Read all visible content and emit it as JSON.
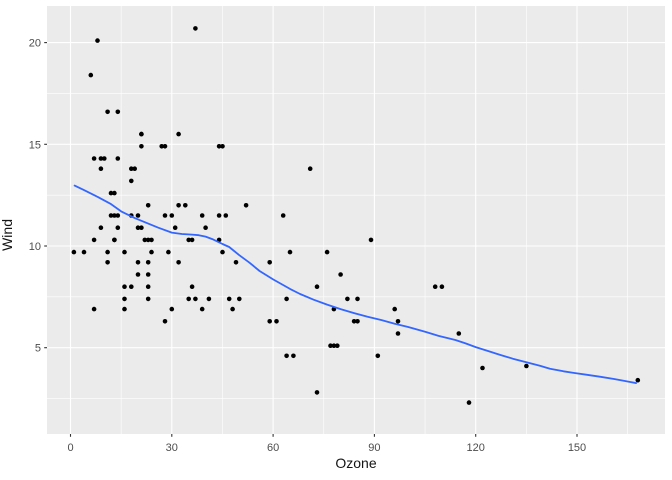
{
  "chart_data": {
    "type": "scatter",
    "title": "",
    "xlabel": "Ozone",
    "ylabel": "Wind",
    "x_ticks": [
      0,
      30,
      60,
      90,
      120,
      150
    ],
    "x_minor_ticks": [
      15,
      45,
      75,
      105,
      135,
      165
    ],
    "y_ticks": [
      5,
      10,
      15,
      20
    ],
    "y_minor_ticks": [
      2.5,
      7.5,
      12.5,
      17.5
    ],
    "xlim": [
      -7.0,
      176.1
    ],
    "ylim": [
      0.8,
      21.8
    ],
    "grid": true,
    "legend_position": "none",
    "series": [
      {
        "name": "points",
        "type": "scatter",
        "points": [
          [
            41,
            7.4
          ],
          [
            36,
            8.0
          ],
          [
            12,
            12.6
          ],
          [
            18,
            11.5
          ],
          [
            28,
            14.9
          ],
          [
            23,
            8.6
          ],
          [
            19,
            13.8
          ],
          [
            8,
            20.1
          ],
          [
            7,
            6.9
          ],
          [
            16,
            9.7
          ],
          [
            11,
            9.2
          ],
          [
            14,
            10.9
          ],
          [
            18,
            13.2
          ],
          [
            14,
            11.5
          ],
          [
            34,
            12.0
          ],
          [
            6,
            18.4
          ],
          [
            30,
            11.5
          ],
          [
            11,
            9.7
          ],
          [
            1,
            9.7
          ],
          [
            11,
            16.6
          ],
          [
            4,
            9.7
          ],
          [
            32,
            12.0
          ],
          [
            23,
            12.0
          ],
          [
            45,
            14.9
          ],
          [
            115,
            5.7
          ],
          [
            37,
            7.4
          ],
          [
            29,
            9.7
          ],
          [
            71,
            13.8
          ],
          [
            39,
            11.5
          ],
          [
            23,
            8.0
          ],
          [
            21,
            14.9
          ],
          [
            37,
            20.7
          ],
          [
            20,
            9.2
          ],
          [
            12,
            11.5
          ],
          [
            13,
            10.3
          ],
          [
            135,
            4.1
          ],
          [
            49,
            9.2
          ],
          [
            32,
            9.2
          ],
          [
            64,
            4.6
          ],
          [
            40,
            10.9
          ],
          [
            77,
            5.1
          ],
          [
            97,
            6.3
          ],
          [
            97,
            5.7
          ],
          [
            85,
            7.4
          ],
          [
            10,
            14.3
          ],
          [
            27,
            14.9
          ],
          [
            7,
            14.3
          ],
          [
            48,
            6.9
          ],
          [
            35,
            10.3
          ],
          [
            61,
            6.3
          ],
          [
            79,
            5.1
          ],
          [
            63,
            11.5
          ],
          [
            16,
            6.9
          ],
          [
            80,
            8.6
          ],
          [
            108,
            8.0
          ],
          [
            20,
            8.6
          ],
          [
            52,
            12.0
          ],
          [
            82,
            7.4
          ],
          [
            50,
            7.4
          ],
          [
            64,
            7.4
          ],
          [
            59,
            9.2
          ],
          [
            39,
            6.9
          ],
          [
            9,
            13.8
          ],
          [
            16,
            7.4
          ],
          [
            78,
            6.9
          ],
          [
            35,
            7.4
          ],
          [
            66,
            4.6
          ],
          [
            122,
            4.0
          ],
          [
            89,
            10.3
          ],
          [
            110,
            8.0
          ],
          [
            44,
            11.5
          ],
          [
            28,
            11.5
          ],
          [
            65,
            9.7
          ],
          [
            22,
            10.3
          ],
          [
            59,
            6.3
          ],
          [
            23,
            7.4
          ],
          [
            31,
            10.9
          ],
          [
            44,
            10.3
          ],
          [
            21,
            15.5
          ],
          [
            9,
            14.3
          ],
          [
            45,
            9.7
          ],
          [
            168,
            3.4
          ],
          [
            73,
            8.0
          ],
          [
            76,
            9.7
          ],
          [
            118,
            2.3
          ],
          [
            84,
            6.3
          ],
          [
            85,
            6.3
          ],
          [
            96,
            6.9
          ],
          [
            78,
            5.1
          ],
          [
            73,
            2.8
          ],
          [
            91,
            4.6
          ],
          [
            47,
            7.4
          ],
          [
            32,
            15.5
          ],
          [
            20,
            10.9
          ],
          [
            23,
            10.3
          ],
          [
            21,
            10.9
          ],
          [
            24,
            9.7
          ],
          [
            44,
            14.9
          ],
          [
            21,
            15.5
          ],
          [
            28,
            6.3
          ],
          [
            9,
            10.9
          ],
          [
            13,
            11.5
          ],
          [
            46,
            11.5
          ],
          [
            18,
            13.8
          ],
          [
            13,
            10.3
          ],
          [
            24,
            10.3
          ],
          [
            16,
            8.0
          ],
          [
            13,
            12.6
          ],
          [
            23,
            9.2
          ],
          [
            36,
            10.3
          ],
          [
            7,
            10.3
          ],
          [
            14,
            16.6
          ],
          [
            30,
            6.9
          ],
          [
            14,
            14.3
          ],
          [
            18,
            8.0
          ],
          [
            20,
            11.5
          ]
        ]
      },
      {
        "name": "loess-smooth",
        "type": "line",
        "points": [
          [
            1.2,
            12.97
          ],
          [
            4,
            12.75
          ],
          [
            8,
            12.42
          ],
          [
            12,
            12.06
          ],
          [
            15,
            11.7
          ],
          [
            19,
            11.37
          ],
          [
            23,
            11.1
          ],
          [
            26,
            10.9
          ],
          [
            30,
            10.66
          ],
          [
            33,
            10.59
          ],
          [
            36,
            10.56
          ],
          [
            38,
            10.53
          ],
          [
            40,
            10.46
          ],
          [
            42,
            10.34
          ],
          [
            45,
            10.1
          ],
          [
            47,
            9.95
          ],
          [
            50,
            9.55
          ],
          [
            53,
            9.18
          ],
          [
            56,
            8.77
          ],
          [
            60,
            8.36
          ],
          [
            65,
            7.89
          ],
          [
            68,
            7.64
          ],
          [
            72,
            7.36
          ],
          [
            76,
            7.12
          ],
          [
            80,
            6.9
          ],
          [
            84,
            6.7
          ],
          [
            88,
            6.52
          ],
          [
            92,
            6.36
          ],
          [
            96,
            6.18
          ],
          [
            100,
            6.02
          ],
          [
            105,
            5.78
          ],
          [
            109,
            5.58
          ],
          [
            114,
            5.38
          ],
          [
            117,
            5.21
          ],
          [
            120,
            5.03
          ],
          [
            124,
            4.82
          ],
          [
            127,
            4.66
          ],
          [
            131,
            4.46
          ],
          [
            135,
            4.28
          ],
          [
            139,
            4.11
          ],
          [
            142,
            3.97
          ],
          [
            146,
            3.84
          ],
          [
            149,
            3.76
          ],
          [
            153,
            3.67
          ],
          [
            157,
            3.57
          ],
          [
            161,
            3.46
          ],
          [
            164,
            3.37
          ],
          [
            167.5,
            3.26
          ]
        ]
      }
    ],
    "colors": {
      "outer_background": "#ffffff",
      "panel_background": "#ebebeb",
      "gridline": "#ffffff",
      "point": "#000000",
      "smooth_line": "#3366ff",
      "tick_mark": "#333333",
      "tick_label": "#4d4d4d",
      "axis_title": "#141414"
    }
  }
}
